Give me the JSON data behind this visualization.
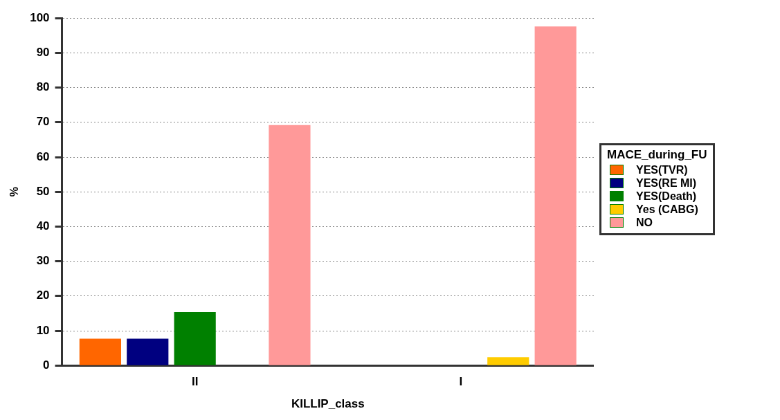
{
  "chart_data": {
    "type": "bar",
    "xlabel": "KILLIP_class",
    "ylabel": "%",
    "legend_title": "MACE_during_FU",
    "categories": [
      "II",
      "I"
    ],
    "series": [
      {
        "name": "YES(TVR)",
        "color": "#ff6600",
        "values": [
          7.7,
          null
        ]
      },
      {
        "name": "YES(RE MI)",
        "color": "#000080",
        "values": [
          7.7,
          null
        ]
      },
      {
        "name": "YES(Death)",
        "color": "#008000",
        "values": [
          15.4,
          null
        ]
      },
      {
        "name": "Yes (CABG)",
        "color": "#ffcc00",
        "values": [
          null,
          2.4
        ]
      },
      {
        "name": "NO",
        "color": "#ff9999",
        "values": [
          69.2,
          97.6
        ]
      }
    ],
    "ylim": [
      0,
      100
    ],
    "yticks": [
      0,
      10,
      20,
      30,
      40,
      50,
      60,
      70,
      80,
      90,
      100
    ],
    "grid": "y",
    "legend": "right"
  }
}
